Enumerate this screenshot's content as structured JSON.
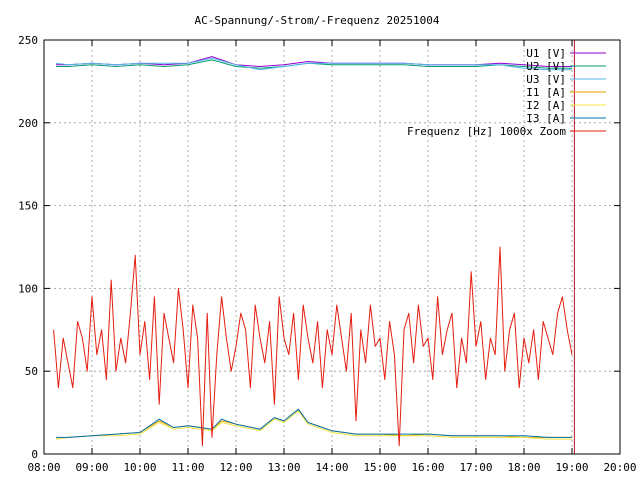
{
  "chart_data": {
    "type": "line",
    "title": "AC-Spannung/-Strom/-Frequenz 20251004",
    "xlabel": "",
    "ylabel": "",
    "x_ticks": [
      "08:00",
      "09:00",
      "10:00",
      "11:00",
      "12:00",
      "13:00",
      "14:00",
      "15:00",
      "16:00",
      "17:00",
      "18:00",
      "19:00",
      "20:00"
    ],
    "xlim_hours": [
      8,
      20
    ],
    "ylim": [
      0,
      250
    ],
    "y_ticks": [
      0,
      50,
      100,
      150,
      200,
      250
    ],
    "grid": true,
    "legend_position": "top-right",
    "series": [
      {
        "name": "U1 [V]",
        "color": "#9400d3",
        "x": [
          8.25,
          8.5,
          9.0,
          9.5,
          10.0,
          10.5,
          11.0,
          11.5,
          12.0,
          12.5,
          13.0,
          13.5,
          14.0,
          14.5,
          15.0,
          15.5,
          16.0,
          16.5,
          17.0,
          17.5,
          18.0,
          18.5,
          19.0
        ],
        "values": [
          235,
          235,
          236,
          235,
          236,
          235,
          236,
          240,
          235,
          234,
          235,
          237,
          236,
          236,
          236,
          236,
          235,
          235,
          235,
          236,
          235,
          234,
          234
        ]
      },
      {
        "name": "U2 [V]",
        "color": "#009e73",
        "x": [
          8.25,
          8.5,
          9.0,
          9.5,
          10.0,
          10.5,
          11.0,
          11.5,
          12.0,
          12.5,
          13.0,
          13.5,
          14.0,
          14.5,
          15.0,
          15.5,
          16.0,
          16.5,
          17.0,
          17.5,
          18.0,
          18.5,
          19.0
        ],
        "values": [
          234,
          234,
          235,
          234,
          235,
          234,
          235,
          238,
          234,
          233,
          234,
          236,
          235,
          235,
          235,
          235,
          234,
          234,
          234,
          235,
          234,
          233,
          233
        ]
      },
      {
        "name": "U3 [V]",
        "color": "#56b4e9",
        "x": [
          8.25,
          8.5,
          9.0,
          9.5,
          10.0,
          10.5,
          11.0,
          11.5,
          12.0,
          12.5,
          13.0,
          13.5,
          14.0,
          14.5,
          15.0,
          15.5,
          16.0,
          16.5,
          17.0,
          17.5,
          18.0,
          18.5,
          19.0
        ],
        "values": [
          236,
          235,
          236,
          235,
          236,
          236,
          236,
          239,
          235,
          232,
          234,
          236,
          236,
          236,
          236,
          236,
          235,
          235,
          235,
          235,
          233,
          232,
          232
        ]
      },
      {
        "name": "I1 [A]",
        "color": "#e69f00",
        "x": [
          8.25,
          8.5,
          9.0,
          9.5,
          10.0,
          10.4,
          10.7,
          11.0,
          11.5,
          11.7,
          12.0,
          12.5,
          12.8,
          13.0,
          13.3,
          13.5,
          13.8,
          14.0,
          14.5,
          15.0,
          15.5,
          16.0,
          16.5,
          17.0,
          17.5,
          18.0,
          18.5,
          19.0
        ],
        "values": [
          9,
          10,
          11,
          12,
          13,
          20,
          16,
          17,
          15,
          20,
          18,
          15,
          22,
          20,
          27,
          19,
          16,
          14,
          12,
          12,
          11,
          12,
          11,
          11,
          11,
          10,
          10,
          10
        ]
      },
      {
        "name": "I2 [A]",
        "color": "#f0e442",
        "x": [
          8.25,
          8.5,
          9.0,
          9.5,
          10.0,
          10.4,
          10.7,
          11.0,
          11.5,
          11.7,
          12.0,
          12.5,
          12.8,
          13.0,
          13.3,
          13.5,
          13.8,
          14.0,
          14.5,
          15.0,
          15.5,
          16.0,
          16.5,
          17.0,
          17.5,
          18.0,
          18.5,
          19.0
        ],
        "values": [
          9,
          10,
          11,
          11,
          12,
          19,
          15,
          16,
          14,
          19,
          17,
          14,
          21,
          19,
          26,
          18,
          15,
          13,
          11,
          11,
          11,
          11,
          10,
          10,
          10,
          10,
          9,
          9
        ]
      },
      {
        "name": "I3 [A]",
        "color": "#0072b2",
        "x": [
          8.25,
          8.5,
          9.0,
          9.5,
          10.0,
          10.4,
          10.7,
          11.0,
          11.5,
          11.7,
          12.0,
          12.5,
          12.8,
          13.0,
          13.3,
          13.5,
          13.8,
          14.0,
          14.5,
          15.0,
          15.5,
          16.0,
          16.5,
          17.0,
          17.5,
          18.0,
          18.5,
          19.0
        ],
        "values": [
          10,
          10,
          11,
          12,
          13,
          21,
          16,
          17,
          15,
          21,
          18,
          15,
          22,
          20,
          27,
          19,
          16,
          14,
          12,
          12,
          12,
          12,
          11,
          11,
          11,
          11,
          10,
          10
        ]
      },
      {
        "name": "Frequenz [Hz] 1000x Zoom",
        "color": "#e51e10",
        "x": [
          8.2,
          8.3,
          8.4,
          8.5,
          8.6,
          8.7,
          8.8,
          8.9,
          9.0,
          9.1,
          9.2,
          9.3,
          9.4,
          9.5,
          9.6,
          9.7,
          9.8,
          9.9,
          10.0,
          10.1,
          10.2,
          10.3,
          10.4,
          10.5,
          10.6,
          10.7,
          10.8,
          10.9,
          11.0,
          11.1,
          11.2,
          11.3,
          11.4,
          11.5,
          11.6,
          11.7,
          11.8,
          11.9,
          12.0,
          12.1,
          12.2,
          12.3,
          12.4,
          12.5,
          12.6,
          12.7,
          12.8,
          12.9,
          13.0,
          13.1,
          13.2,
          13.3,
          13.4,
          13.5,
          13.6,
          13.7,
          13.8,
          13.9,
          14.0,
          14.1,
          14.2,
          14.3,
          14.4,
          14.5,
          14.6,
          14.7,
          14.8,
          14.9,
          15.0,
          15.1,
          15.2,
          15.3,
          15.4,
          15.5,
          15.6,
          15.7,
          15.8,
          15.9,
          16.0,
          16.1,
          16.2,
          16.3,
          16.4,
          16.5,
          16.6,
          16.7,
          16.8,
          16.9,
          17.0,
          17.1,
          17.2,
          17.3,
          17.4,
          17.5,
          17.6,
          17.7,
          17.8,
          17.9,
          18.0,
          18.1,
          18.2,
          18.3,
          18.4,
          18.5,
          18.6,
          18.7,
          18.8,
          18.9,
          19.0
        ],
        "values": [
          75,
          40,
          70,
          55,
          40,
          80,
          70,
          50,
          95,
          60,
          75,
          45,
          105,
          50,
          70,
          55,
          85,
          120,
          60,
          80,
          45,
          95,
          30,
          85,
          70,
          55,
          100,
          75,
          40,
          90,
          70,
          5,
          85,
          10,
          60,
          95,
          70,
          50,
          65,
          85,
          75,
          40,
          90,
          70,
          55,
          80,
          30,
          95,
          70,
          60,
          85,
          45,
          90,
          70,
          55,
          80,
          40,
          75,
          60,
          90,
          70,
          50,
          85,
          20,
          75,
          55,
          90,
          65,
          70,
          45,
          80,
          60,
          5,
          75,
          85,
          55,
          90,
          65,
          70,
          45,
          95,
          60,
          75,
          85,
          40,
          70,
          55,
          110,
          65,
          80,
          45,
          70,
          60,
          125,
          50,
          75,
          85,
          40,
          70,
          55,
          75,
          45,
          80,
          70,
          60,
          85,
          95,
          75,
          60
        ]
      }
    ],
    "end_marker": {
      "x": 19.05,
      "color": "#b8172a"
    }
  }
}
